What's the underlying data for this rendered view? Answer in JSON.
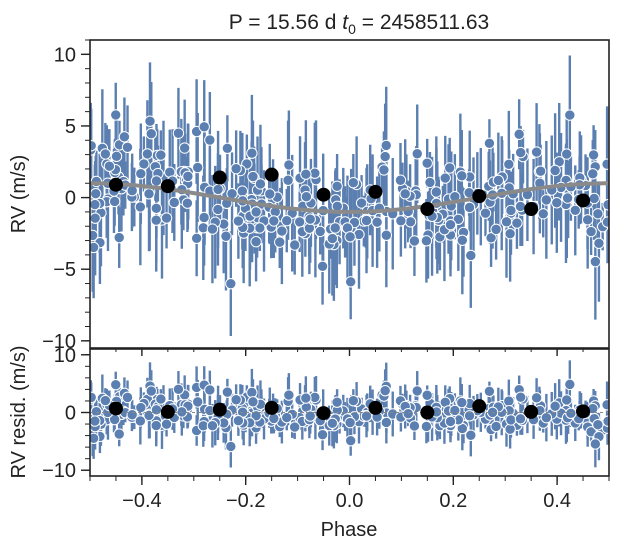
{
  "chart_data": [
    {
      "type": "scatter",
      "title_prefix": "P = 15.56 d ",
      "title_t0_symbol": "t",
      "title_t0_subscript": "0",
      "title_t0_value": " = 2458511.63",
      "xlabel": "",
      "ylabel": "RV (m/s)",
      "xlim": [
        -0.5,
        0.5
      ],
      "ylim": [
        -10.5,
        11
      ],
      "yticks": [
        "−10",
        "−5",
        "0",
        "5",
        "10"
      ],
      "ytick_values": [
        -10,
        -5,
        0,
        5,
        10
      ],
      "grid": false,
      "colors": {
        "points": "#5b7fb0",
        "errorbars": "#5b7fb0",
        "binned": "#000000",
        "model": "#8a8a8a",
        "zero_line": "#888888"
      },
      "model_amplitude": 1.0,
      "binned": {
        "x": [
          -0.45,
          -0.35,
          -0.25,
          -0.15,
          -0.05,
          0.05,
          0.15,
          0.25,
          0.35,
          0.45
        ],
        "y": [
          0.9,
          0.8,
          1.4,
          1.6,
          0.2,
          0.4,
          -0.8,
          0.1,
          -0.8,
          -0.2
        ]
      },
      "series": [
        {
          "name": "",
          "x": [],
          "y": [],
          "yerr": []
        }
      ]
    },
    {
      "type": "scatter",
      "xlabel": "Phase",
      "ylabel": "RV resid. (m/s)",
      "xlim": [
        -0.5,
        0.5
      ],
      "ylim": [
        -11,
        11
      ],
      "xticks": [
        "−0.4",
        "−0.2",
        "0.0",
        "0.2",
        "0.4"
      ],
      "xtick_values": [
        -0.4,
        -0.2,
        0.0,
        0.2,
        0.4
      ],
      "yticks": [
        "−10",
        "0",
        "10"
      ],
      "ytick_values": [
        -10,
        0,
        10
      ],
      "grid": false,
      "binned": {
        "x": [
          -0.45,
          -0.35,
          -0.25,
          -0.15,
          -0.05,
          0.05,
          0.15,
          0.25,
          0.35,
          0.45
        ],
        "y": [
          0.7,
          0.1,
          0.5,
          0.8,
          -0.1,
          0.8,
          0.0,
          1.1,
          0.1,
          0.2
        ]
      },
      "series": [
        {
          "name": "",
          "x": [],
          "y": [],
          "yerr": []
        }
      ]
    }
  ]
}
